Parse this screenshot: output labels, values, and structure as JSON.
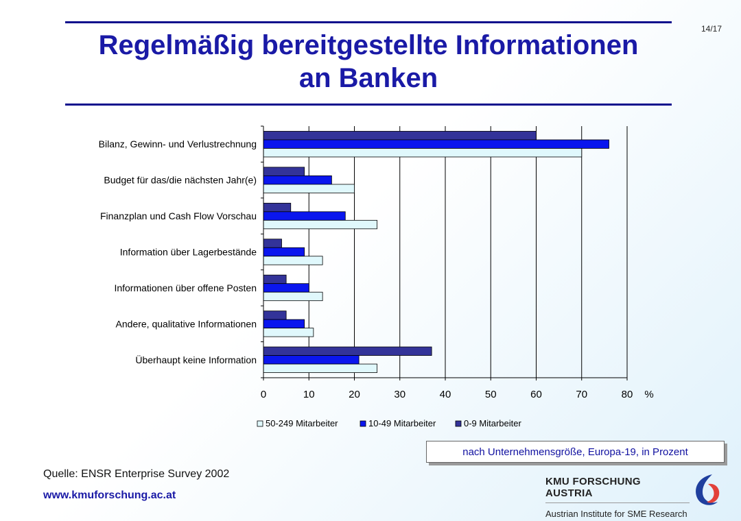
{
  "page": {
    "number": "14/17"
  },
  "title": {
    "line1": "Regelmäßig bereitgestellte Informationen",
    "line2": "an Banken"
  },
  "note": "nach Unternehmensgröße, Europa-19, in Prozent",
  "source": "Quelle: ENSR Enterprise Survey 2002",
  "url": "www.kmuforschung.ac.at",
  "brand": {
    "name": "KMU FORSCHUNG AUSTRIA",
    "subtitle": "Austrian Institute for SME Research"
  },
  "colors": {
    "series_large": "#e0f8fc",
    "series_medium": "#0a16ee",
    "series_small": "#333399",
    "accent": "#1a1aa6",
    "logo_blue": "#1f3f9e",
    "logo_red": "#e2413a"
  },
  "icons": {
    "logo": "kmu-swirl-logo"
  },
  "chart_data": {
    "type": "bar",
    "orientation": "horizontal",
    "categories": [
      "Bilanz, Gewinn- und Verlustrechnung",
      "Budget für das/die nächsten Jahr(e)",
      "Finanzplan und Cash Flow Vorschau",
      "Information über Lagerbestände",
      "Informationen über offene Posten",
      "Andere, qualitative Informationen",
      "Überhaupt keine Information"
    ],
    "series": [
      {
        "name": "0-9 Mitarbeiter",
        "values": [
          60,
          9,
          6,
          4,
          5,
          5,
          37
        ]
      },
      {
        "name": "10-49 Mitarbeiter",
        "values": [
          76,
          15,
          18,
          9,
          10,
          9,
          21
        ]
      },
      {
        "name": "50-249 Mitarbeiter",
        "values": [
          70,
          20,
          25,
          13,
          13,
          11,
          25
        ]
      }
    ],
    "legend_order": [
      "50-249 Mitarbeiter",
      "10-49 Mitarbeiter",
      "0-9 Mitarbeiter"
    ],
    "xlabel": "%",
    "xlim": [
      0,
      80
    ],
    "xticks": [
      0,
      10,
      20,
      30,
      40,
      50,
      60,
      70,
      80
    ],
    "grid": "vertical",
    "legend_position": "bottom"
  }
}
